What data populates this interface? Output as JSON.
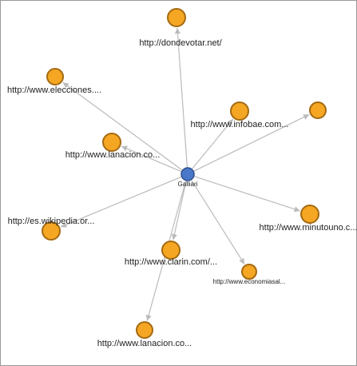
{
  "center": {
    "label": "Galliari"
  },
  "nodes": [
    {
      "label": "http://dondevotar.net/"
    },
    {
      "label": "http://www.elecciones...."
    },
    {
      "label": "http://www.infobae.com..."
    },
    {},
    {
      "label": "http://www.lanacion.co..."
    },
    {
      "label": "http://www.minutouno.c..."
    },
    {
      "label": "http://es.wikipedia.or..."
    },
    {
      "label": "http://www.clarin.com/..."
    },
    {
      "label": "http://www.economiasal..."
    },
    {
      "label": "http://www.lanacion.co..."
    }
  ]
}
